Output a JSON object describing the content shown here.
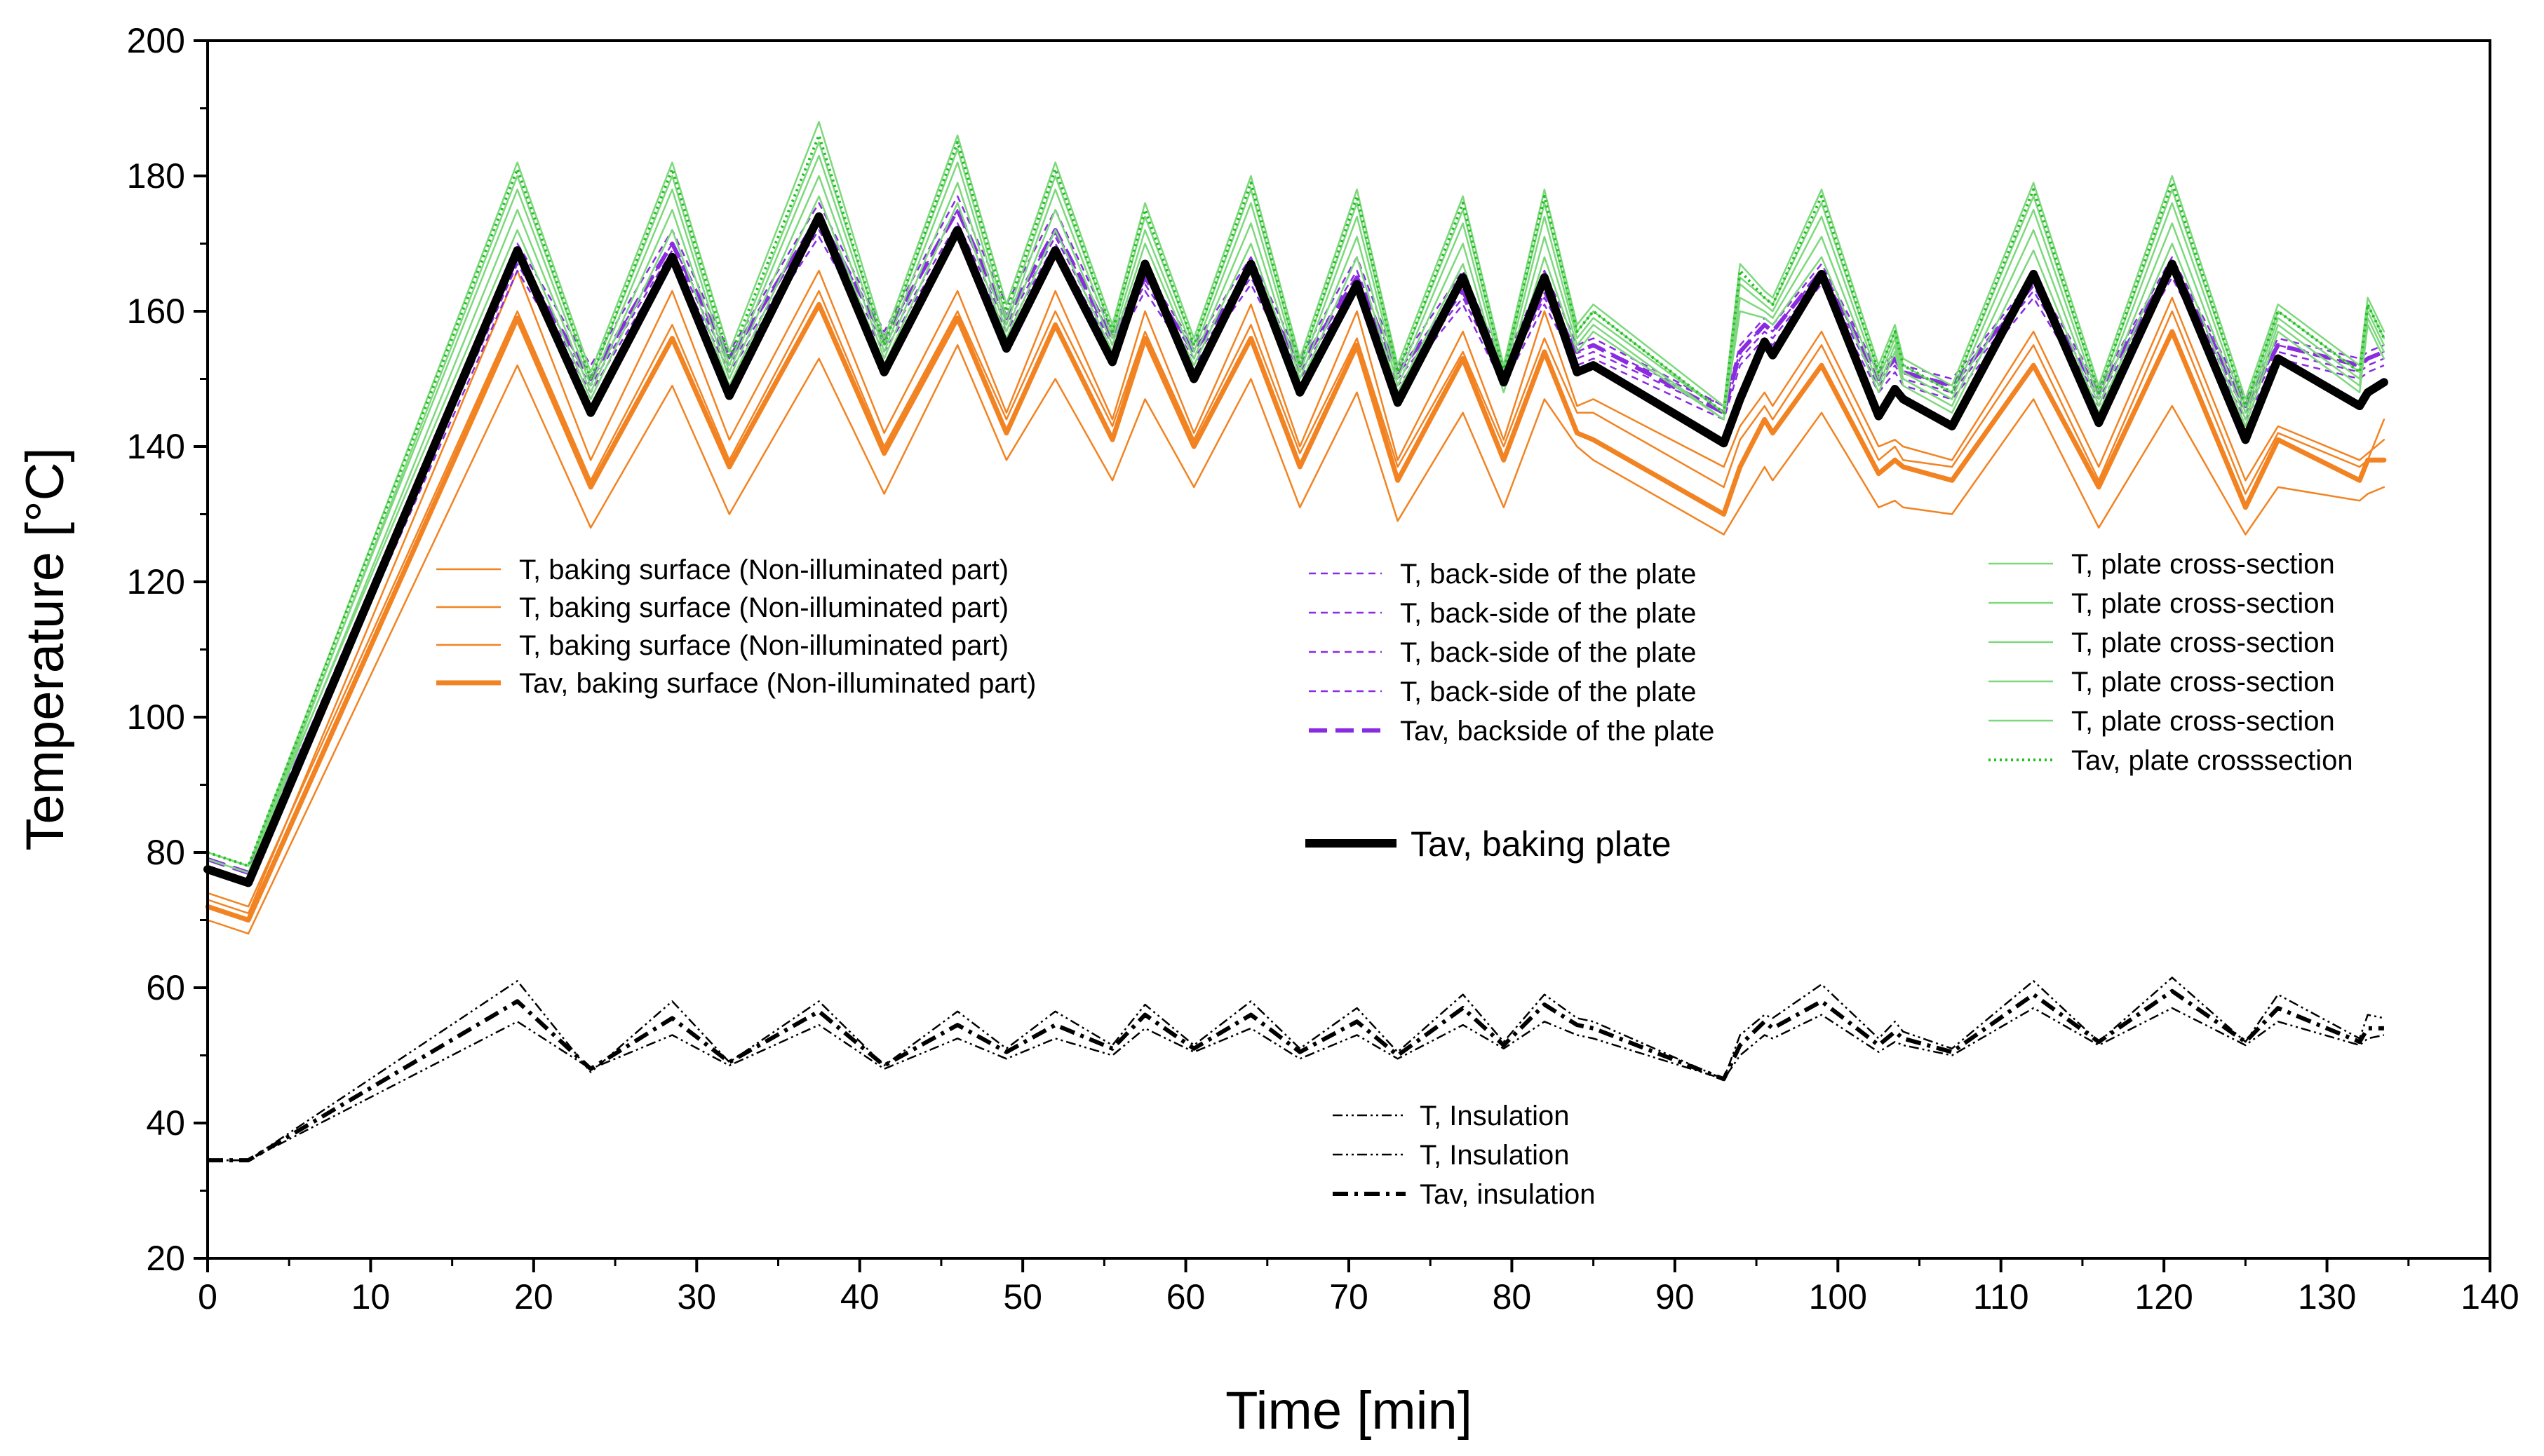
{
  "chart_data": {
    "type": "line",
    "title": "",
    "xlabel": "Time [min]",
    "ylabel": "Temperature [°C]",
    "xlim": [
      0,
      140
    ],
    "ylim": [
      20,
      200
    ],
    "xticks": [
      0,
      10,
      20,
      30,
      40,
      50,
      60,
      70,
      80,
      90,
      100,
      110,
      120,
      130,
      140
    ],
    "yticks": [
      20,
      40,
      60,
      80,
      100,
      120,
      140,
      160,
      180,
      200
    ],
    "grid": false,
    "colors": {
      "orange": "#f28322",
      "purple": "#8a2be2",
      "green": "#22c022",
      "lightgreen": "#7dd87d",
      "black": "#000000"
    },
    "base_time": [
      0,
      2.5,
      19,
      23.5,
      28.5,
      32,
      37.5,
      41.5,
      46,
      49,
      52,
      55.5,
      57.5,
      60.5,
      64,
      67,
      70.5,
      73,
      77,
      79.5,
      82,
      84,
      85,
      93,
      94,
      95.5,
      96,
      99,
      102.5,
      103.5,
      104,
      107,
      112,
      116,
      120.5,
      125,
      127,
      132,
      132.5,
      133.5
    ],
    "series": [
      {
        "name": "T, baking surface (Non-illuminated part)",
        "color": "orange",
        "width": 2.5,
        "dash": "solid",
        "values": [
          70,
          68,
          152,
          128,
          149,
          130,
          153,
          133,
          155,
          138,
          150,
          135,
          147,
          134,
          150,
          131,
          148,
          129,
          145,
          131,
          147,
          140,
          138,
          127,
          131,
          137,
          135,
          145,
          131,
          132,
          131,
          130,
          147,
          128,
          146,
          127,
          134,
          132,
          133,
          134
        ]
      },
      {
        "name": "T, baking surface (Non-illuminated part)",
        "color": "orange",
        "width": 2.5,
        "dash": "solid",
        "values": [
          73,
          71,
          166,
          138,
          163,
          141,
          166,
          142,
          163,
          145,
          163,
          144,
          160,
          142,
          161,
          140,
          160,
          138,
          157,
          141,
          160,
          146,
          147,
          137,
          143,
          148,
          146,
          157,
          140,
          141,
          140,
          138,
          157,
          137,
          162,
          135,
          143,
          138,
          139,
          141
        ]
      },
      {
        "name": "T, baking surface (Non-illuminated part)",
        "color": "orange",
        "width": 2.5,
        "dash": "solid",
        "values": [
          74,
          72,
          160,
          135,
          158,
          138,
          163,
          140,
          160,
          144,
          160,
          143,
          157,
          141,
          158,
          139,
          156,
          137,
          154,
          140,
          156,
          145,
          145,
          134,
          141,
          146,
          144,
          155,
          138,
          140,
          138,
          137,
          155,
          135,
          160,
          133,
          142,
          137,
          138,
          144
        ]
      },
      {
        "name": "Tav, baking surface (Non-illuminated part)",
        "color": "orange",
        "width": 7,
        "dash": "solid",
        "values": [
          72,
          70,
          159,
          134,
          156,
          137,
          161,
          139,
          159,
          142,
          158,
          141,
          156,
          140,
          156,
          137,
          155,
          135,
          153,
          138,
          154,
          142,
          141,
          130,
          137,
          144,
          142,
          152,
          136,
          138,
          137,
          135,
          152,
          134,
          157,
          131,
          141,
          135,
          138,
          138
        ]
      },
      {
        "name": "T, back-side of the plate",
        "color": "purple",
        "width": 2.5,
        "dash": "10,7",
        "values": [
          79,
          77,
          167,
          149,
          169,
          152,
          172,
          155,
          173,
          158,
          171,
          155,
          164,
          153,
          165,
          151,
          164,
          150,
          162,
          150,
          162,
          153,
          154,
          145,
          153,
          157,
          156,
          165,
          149,
          152,
          150,
          148,
          163,
          147,
          166,
          145,
          154,
          151,
          152,
          153
        ]
      },
      {
        "name": "T, back-side of the plate",
        "color": "purple",
        "width": 2.5,
        "dash": "10,7",
        "values": [
          78,
          76,
          168,
          150,
          170,
          153,
          174,
          156,
          175,
          159,
          172,
          156,
          165,
          154,
          166,
          152,
          166,
          151,
          164,
          151,
          164,
          154,
          155,
          146,
          154,
          158,
          157,
          166,
          150,
          153,
          151,
          149,
          164,
          148,
          167,
          146,
          155,
          152,
          153,
          154
        ]
      },
      {
        "name": "T, back-side of the plate",
        "color": "purple",
        "width": 2.5,
        "dash": "10,7",
        "values": [
          79,
          77,
          170,
          152,
          172,
          154,
          176,
          157,
          177,
          161,
          175,
          157,
          166,
          155,
          168,
          153,
          168,
          152,
          166,
          152,
          166,
          155,
          156,
          146,
          155,
          159,
          158,
          167,
          151,
          154,
          152,
          150,
          165,
          149,
          168,
          147,
          156,
          153,
          154,
          155
        ]
      },
      {
        "name": "T, back-side of the plate",
        "color": "purple",
        "width": 2.5,
        "dash": "10,7",
        "values": [
          78,
          76,
          166,
          148,
          168,
          151,
          171,
          154,
          172,
          157,
          170,
          154,
          163,
          152,
          164,
          150,
          163,
          149,
          161,
          149,
          161,
          152,
          153,
          144,
          152,
          156,
          155,
          164,
          148,
          151,
          149,
          147,
          162,
          146,
          165,
          144,
          153,
          150,
          151,
          152
        ]
      },
      {
        "name": "Tav, backside of the plate",
        "color": "purple",
        "width": 6,
        "dash": "26,12",
        "values": [
          79,
          77,
          168,
          150,
          170,
          153,
          174,
          156,
          175,
          159,
          172,
          156,
          165,
          154,
          166,
          152,
          165,
          151,
          163,
          151,
          163,
          154,
          155,
          145,
          154,
          158,
          157,
          166,
          150,
          153,
          151,
          149,
          164,
          148,
          167,
          146,
          155,
          152,
          153,
          154
        ]
      },
      {
        "name": "T, plate cross-section",
        "color": "lightgreen",
        "width": 2.5,
        "dash": "solid",
        "values": [
          80,
          78,
          182,
          151,
          182,
          154,
          188,
          156,
          186,
          161,
          182,
          158,
          176,
          156,
          180,
          153,
          178,
          152,
          177,
          152,
          178,
          158,
          161,
          146,
          167,
          163,
          162,
          178,
          152,
          158,
          153,
          149,
          179,
          149,
          180,
          147,
          161,
          152,
          162,
          157
        ]
      },
      {
        "name": "T, plate cross-section",
        "color": "lightgreen",
        "width": 2.5,
        "dash": "solid",
        "values": [
          79,
          77,
          180,
          150,
          180,
          152,
          185,
          155,
          184,
          159,
          180,
          157,
          174,
          155,
          178,
          152,
          176,
          151,
          175,
          151,
          176,
          157,
          160,
          145,
          165,
          162,
          161,
          176,
          151,
          157,
          152,
          148,
          177,
          148,
          178,
          146,
          160,
          151,
          161,
          156
        ]
      },
      {
        "name": "T, plate cross-section",
        "color": "lightgreen",
        "width": 2.5,
        "dash": "solid",
        "values": [
          80,
          78,
          178,
          149,
          178,
          151,
          183,
          154,
          182,
          158,
          178,
          156,
          172,
          154,
          176,
          151,
          174,
          150,
          173,
          150,
          174,
          156,
          159,
          145,
          164,
          161,
          160,
          174,
          150,
          156,
          151,
          147,
          175,
          147,
          176,
          145,
          159,
          150,
          160,
          155
        ]
      },
      {
        "name": "T, plate cross-section",
        "color": "lightgreen",
        "width": 2.5,
        "dash": "solid",
        "values": [
          79,
          77,
          175,
          148,
          175,
          150,
          180,
          153,
          179,
          157,
          175,
          155,
          170,
          153,
          173,
          150,
          171,
          149,
          170,
          149,
          171,
          155,
          158,
          144,
          162,
          160,
          159,
          171,
          149,
          155,
          150,
          146,
          172,
          146,
          173,
          144,
          158,
          149,
          159,
          154
        ]
      },
      {
        "name": "T, plate cross-section",
        "color": "lightgreen",
        "width": 2.5,
        "dash": "solid",
        "values": [
          80,
          78,
          172,
          147,
          172,
          149,
          177,
          152,
          176,
          156,
          172,
          154,
          167,
          152,
          170,
          149,
          168,
          148,
          167,
          148,
          168,
          154,
          157,
          144,
          160,
          159,
          158,
          168,
          148,
          154,
          149,
          145,
          169,
          145,
          170,
          143,
          157,
          148,
          158,
          153
        ]
      },
      {
        "name": "Tav, plate crosssection",
        "color": "green",
        "width": 4,
        "dash": "3,5",
        "values": [
          80,
          78,
          181,
          150,
          181,
          153,
          186,
          155,
          185,
          160,
          181,
          157,
          175,
          155,
          179,
          152,
          177,
          151,
          176,
          151,
          177,
          157,
          160,
          145,
          166,
          162,
          161,
          177,
          151,
          157,
          152,
          148,
          178,
          148,
          179,
          146,
          160,
          151,
          161,
          156
        ]
      },
      {
        "name": "T, Insulation",
        "color": "black",
        "width": 2.5,
        "dash": "14,5,3,5,3,5",
        "values": [
          34.5,
          34.5,
          61,
          47.5,
          58,
          49,
          58,
          48.5,
          56.5,
          51,
          56.5,
          51.5,
          57.5,
          51.5,
          58,
          51,
          57,
          50.5,
          59,
          52,
          59,
          55.5,
          55,
          46.5,
          53,
          56,
          55.5,
          60.5,
          52.5,
          55,
          53.5,
          51,
          61,
          52,
          61.5,
          52,
          59,
          52.5,
          56,
          55.5
        ]
      },
      {
        "name": "T, Insulation",
        "color": "black",
        "width": 2.5,
        "dash": "14,5,3,5,3,5",
        "values": [
          34.5,
          34.5,
          55,
          48,
          53,
          48.5,
          54.5,
          48,
          52.5,
          49.5,
          52.5,
          50,
          54,
          50.5,
          54,
          49.5,
          53,
          49.5,
          54.5,
          51,
          55,
          53,
          52.5,
          46.5,
          50,
          53,
          52.5,
          56,
          50.5,
          52,
          51.5,
          50,
          57,
          51.5,
          57,
          51.5,
          55,
          51.5,
          52.5,
          53
        ]
      },
      {
        "name": "Tav, insulation",
        "color": "black",
        "width": 6,
        "dash": "22,9,5,9",
        "values": [
          34.5,
          34.5,
          58,
          48,
          55.5,
          49,
          56.5,
          48.5,
          54.5,
          50.5,
          54.5,
          51,
          56,
          51,
          56,
          50.5,
          55,
          50,
          57,
          51.5,
          57.5,
          54.5,
          54,
          46.5,
          51.5,
          55,
          54,
          58,
          51.5,
          53.5,
          52.5,
          50.5,
          59,
          52,
          59.5,
          52,
          57,
          52,
          54,
          54
        ]
      },
      {
        "name": "Tav, baking plate",
        "color": "black",
        "width": 12,
        "dash": "solid",
        "values": [
          77.5,
          75.5,
          169,
          145,
          168,
          147.5,
          174,
          151,
          172,
          154.5,
          169,
          152.5,
          167,
          150,
          167,
          148,
          164,
          146.5,
          165,
          149.5,
          165,
          151,
          152,
          140.5,
          147,
          155.5,
          153.5,
          165.5,
          144.5,
          148.5,
          147,
          143,
          165.5,
          143.5,
          167,
          141,
          153,
          146,
          148,
          149.5
        ]
      }
    ],
    "legends": [
      {
        "entries": [
          0,
          1,
          2,
          3
        ]
      },
      {
        "entries": [
          4,
          5,
          6,
          7,
          8
        ]
      },
      {
        "entries": [
          9,
          10,
          11,
          12,
          13,
          14
        ]
      },
      {
        "entries": [
          18
        ]
      },
      {
        "entries": [
          15,
          16,
          17
        ]
      }
    ]
  }
}
